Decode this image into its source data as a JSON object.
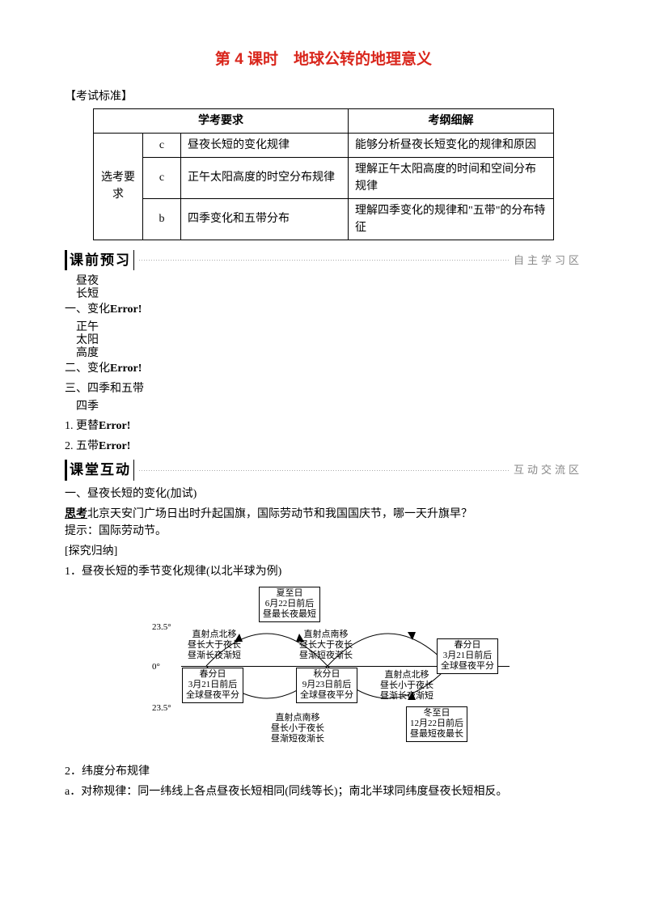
{
  "title": "第 4 课时　地球公转的地理意义",
  "exam_standard_label": "【考试标准】",
  "table": {
    "head_left": "学考要求",
    "head_right": "考纲细解",
    "row_label": "选考要求",
    "rows": [
      {
        "code": "c",
        "left": "昼夜长短的变化规律",
        "right": "能够分析昼夜长短变化的规律和原因"
      },
      {
        "code": "c",
        "left": "正午太阳高度的时空分布规律",
        "right": "理解正午太阳高度的时间和空间分布规律"
      },
      {
        "code": "b",
        "left": "四季变化和五带分布",
        "right": "理解四季变化的规律和\"五带\"的分布特征"
      }
    ]
  },
  "bar_preview": {
    "left": "课前预习",
    "right": "自主学习区"
  },
  "bar_interact": {
    "left": "课堂互动",
    "right": "互动交流区"
  },
  "outline": {
    "one_stack": [
      "昼夜",
      "长短"
    ],
    "one_label": "一、变化",
    "two_stack": [
      "正午",
      "太阳",
      "高度"
    ],
    "two_label": "二、变化",
    "three_label": "三、四季和五带",
    "item1_stack": [
      "四季"
    ],
    "item1_label": "1. 更替",
    "item2_label": "2. 五带",
    "err": "Error!"
  },
  "section1_title": "一、昼夜长短的变化(加试)",
  "think_label": "思考",
  "think_text": "北京天安门广场日出时升起国旗，国际劳动节和我国国庆节，哪一天升旗早？",
  "think_hint": "提示：国际劳动节。",
  "explore_label": "[探究归纳]",
  "point1": "1．昼夜长短的季节变化规律(以北半球为例)",
  "diagram": {
    "lat_top": "23.5°",
    "lat_mid": "0°",
    "lat_bot": "23.5°",
    "box_summer": "夏至日\n6月22日前后\n昼最长夜最短",
    "box_spring_left": "春分日\n3月21日前后\n全球昼夜平分",
    "box_autumn": "秋分日\n9月23日前后\n全球昼夜平分",
    "box_spring_right": "春分日\n3月21日前后\n全球昼夜平分",
    "box_winter": "冬至日\n12月22日前后\n昼最短夜最长",
    "txt_upleft": "直射点北移\n昼长大于夜长\n昼渐长夜渐短",
    "txt_upright": "直射点南移\n昼长大于夜长\n昼渐短夜渐长",
    "txt_lowright": "直射点北移\n昼长小于夜长\n昼渐长夜渐短",
    "txt_lowcenter": "直射点南移\n昼长小于夜长\n昼渐短夜渐长"
  },
  "point2": "2．纬度分布规律",
  "point2a": "a．对称规律：同一纬线上各点昼夜长短相同(同线等长)；南北半球同纬度昼夜长短相反。"
}
